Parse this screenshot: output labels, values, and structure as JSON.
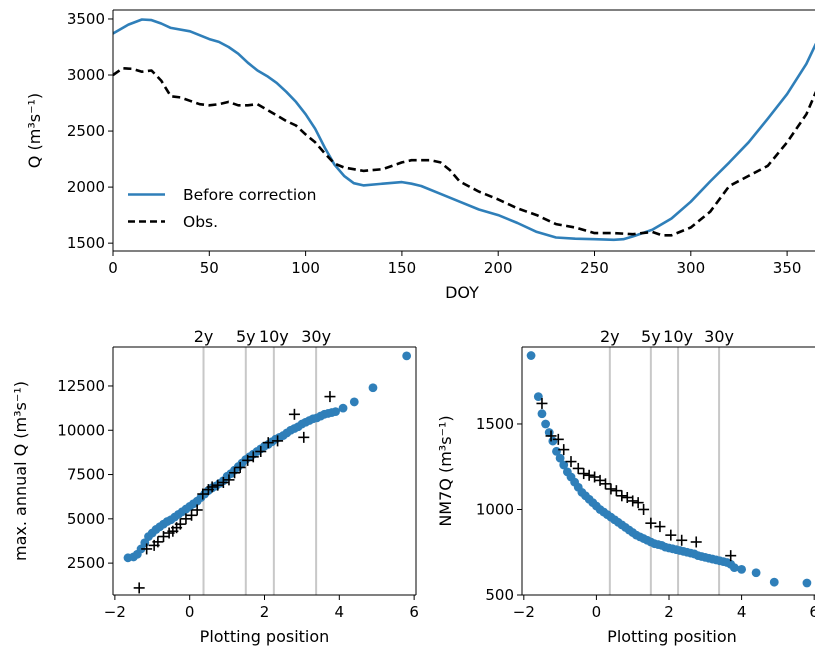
{
  "chart_data": [
    {
      "type": "line",
      "xlabel": "DOY",
      "ylabel": "Q (m³s⁻¹)",
      "xlim": [
        0,
        365
      ],
      "ylim": [
        1430,
        3580
      ],
      "x_ticks": [
        0,
        50,
        100,
        150,
        200,
        250,
        300,
        350
      ],
      "x_tick_labels": [
        "0",
        "50",
        "100",
        "150",
        "200",
        "250",
        "300",
        "350"
      ],
      "y_ticks": [
        1500,
        2000,
        2500,
        3000,
        3500
      ],
      "y_tick_labels": [
        "1500",
        "2000",
        "2500",
        "3000",
        "3500"
      ],
      "legend_position": "lower-left",
      "series": [
        {
          "name": "Before correction",
          "style": "solid",
          "color": "#2f7fb9",
          "x": [
            0,
            8,
            15,
            20,
            25,
            30,
            40,
            50,
            55,
            60,
            65,
            70,
            75,
            80,
            85,
            90,
            95,
            100,
            105,
            110,
            115,
            120,
            125,
            130,
            140,
            150,
            155,
            160,
            170,
            180,
            190,
            200,
            210,
            220,
            230,
            240,
            250,
            260,
            265,
            270,
            280,
            290,
            300,
            310,
            320,
            330,
            340,
            350,
            360,
            365
          ],
          "y": [
            3370,
            3450,
            3495,
            3490,
            3460,
            3420,
            3390,
            3320,
            3295,
            3250,
            3190,
            3110,
            3040,
            2990,
            2930,
            2850,
            2760,
            2650,
            2520,
            2350,
            2200,
            2100,
            2035,
            2015,
            2030,
            2045,
            2030,
            2010,
            1940,
            1870,
            1800,
            1750,
            1680,
            1600,
            1550,
            1540,
            1535,
            1530,
            1535,
            1560,
            1620,
            1720,
            1870,
            2050,
            2220,
            2400,
            2610,
            2830,
            3100,
            3280
          ]
        },
        {
          "name": "Obs.",
          "style": "dashed",
          "color": "#000000",
          "x": [
            0,
            5,
            10,
            15,
            20,
            25,
            30,
            35,
            40,
            45,
            50,
            55,
            60,
            65,
            70,
            75,
            80,
            85,
            90,
            95,
            100,
            105,
            110,
            115,
            120,
            125,
            130,
            140,
            150,
            155,
            160,
            165,
            170,
            175,
            180,
            190,
            200,
            210,
            220,
            230,
            240,
            250,
            260,
            270,
            280,
            285,
            290,
            300,
            310,
            320,
            330,
            340,
            350,
            360,
            365
          ],
          "y": [
            3000,
            3060,
            3055,
            3030,
            3040,
            2950,
            2810,
            2800,
            2770,
            2740,
            2730,
            2740,
            2760,
            2730,
            2730,
            2740,
            2690,
            2640,
            2590,
            2550,
            2470,
            2400,
            2300,
            2210,
            2175,
            2160,
            2145,
            2160,
            2220,
            2240,
            2240,
            2240,
            2220,
            2150,
            2050,
            1960,
            1890,
            1810,
            1750,
            1670,
            1640,
            1590,
            1590,
            1580,
            1600,
            1570,
            1570,
            1640,
            1780,
            2010,
            2100,
            2190,
            2400,
            2650,
            2850
          ]
        }
      ]
    },
    {
      "type": "scatter",
      "xlabel": "Plotting position",
      "ylabel": "max. annual Q (m³s⁻¹)",
      "xlim": [
        -2.05,
        6.05
      ],
      "ylim": [
        700,
        14700
      ],
      "x_ticks": [
        -2,
        0,
        2,
        4,
        6
      ],
      "x_tick_labels": [
        "−2",
        "0",
        "2",
        "4",
        "6"
      ],
      "y_ticks": [
        2500,
        5000,
        7500,
        10000,
        12500
      ],
      "y_tick_labels": [
        "2500",
        "5000",
        "7500",
        "10000",
        "12500"
      ],
      "return_periods": [
        {
          "label": "2y",
          "x": 0.37
        },
        {
          "label": "5y",
          "x": 1.5
        },
        {
          "label": "10y",
          "x": 2.25
        },
        {
          "label": "30y",
          "x": 3.38
        }
      ],
      "series": [
        {
          "name": "",
          "marker": "circle",
          "color": "#2f7fb9",
          "x": [
            -1.65,
            -1.5,
            -1.4,
            -1.3,
            -1.2,
            -1.1,
            -1.0,
            -0.9,
            -0.8,
            -0.7,
            -0.6,
            -0.5,
            -0.4,
            -0.3,
            -0.2,
            -0.1,
            0.0,
            0.1,
            0.2,
            0.3,
            0.4,
            0.5,
            0.6,
            0.7,
            0.8,
            0.9,
            1.0,
            1.1,
            1.2,
            1.3,
            1.4,
            1.5,
            1.6,
            1.7,
            1.8,
            1.9,
            2.0,
            2.1,
            2.2,
            2.3,
            2.4,
            2.5,
            2.6,
            2.7,
            2.8,
            2.9,
            3.0,
            3.1,
            3.2,
            3.3,
            3.4,
            3.5,
            3.6,
            3.7,
            3.8,
            3.9,
            4.1,
            4.4,
            4.9,
            5.8
          ],
          "y": [
            2800,
            2850,
            3000,
            3300,
            3650,
            4000,
            4200,
            4400,
            4550,
            4700,
            4850,
            4950,
            5100,
            5250,
            5400,
            5550,
            5700,
            5850,
            6000,
            6200,
            6400,
            6600,
            6750,
            6850,
            7000,
            7150,
            7400,
            7550,
            7750,
            7950,
            8150,
            8350,
            8500,
            8650,
            8800,
            8950,
            9100,
            9200,
            9350,
            9500,
            9600,
            9700,
            9850,
            10000,
            10100,
            10200,
            10350,
            10450,
            10550,
            10650,
            10700,
            10800,
            10900,
            10950,
            11000,
            11050,
            11250,
            11600,
            12400,
            14200
          ]
        },
        {
          "name": "",
          "marker": "plus",
          "color": "#000000",
          "x": [
            -1.35,
            -1.15,
            -0.95,
            -0.85,
            -0.7,
            -0.55,
            -0.45,
            -0.35,
            -0.25,
            -0.1,
            0.05,
            0.2,
            0.35,
            0.5,
            0.6,
            0.75,
            0.9,
            1.05,
            1.2,
            1.35,
            1.55,
            1.7,
            1.9,
            2.1,
            2.35,
            2.8,
            3.05,
            3.75
          ],
          "y": [
            1100,
            3300,
            3500,
            3700,
            4000,
            4200,
            4300,
            4500,
            4700,
            5000,
            5200,
            5500,
            6400,
            6650,
            6800,
            6900,
            7050,
            7200,
            7600,
            7900,
            8300,
            8500,
            8800,
            9300,
            9400,
            10900,
            9600,
            11900
          ]
        }
      ]
    },
    {
      "type": "scatter",
      "xlabel": "Plotting position",
      "ylabel": "NM7Q (m³s⁻¹)",
      "xlim": [
        -2.05,
        6.05
      ],
      "ylim": [
        500,
        1950
      ],
      "x_ticks": [
        -2,
        0,
        2,
        4,
        6
      ],
      "x_tick_labels": [
        "−2",
        "0",
        "2",
        "4",
        "6"
      ],
      "y_ticks": [
        500,
        1000,
        1500
      ],
      "y_tick_labels": [
        "500",
        "1000",
        "1500"
      ],
      "return_periods": [
        {
          "label": "2y",
          "x": 0.37
        },
        {
          "label": "5y",
          "x": 1.5
        },
        {
          "label": "10y",
          "x": 2.25
        },
        {
          "label": "30y",
          "x": 3.38
        }
      ],
      "series": [
        {
          "name": "",
          "marker": "circle",
          "color": "#2f7fb9",
          "x": [
            -1.8,
            -1.6,
            -1.5,
            -1.4,
            -1.3,
            -1.2,
            -1.1,
            -1.0,
            -0.9,
            -0.8,
            -0.7,
            -0.6,
            -0.5,
            -0.4,
            -0.3,
            -0.2,
            -0.1,
            0.0,
            0.1,
            0.2,
            0.3,
            0.4,
            0.5,
            0.6,
            0.7,
            0.8,
            0.9,
            1.0,
            1.1,
            1.2,
            1.3,
            1.4,
            1.5,
            1.6,
            1.7,
            1.8,
            1.9,
            2.0,
            2.1,
            2.2,
            2.3,
            2.4,
            2.5,
            2.6,
            2.7,
            2.8,
            2.9,
            3.0,
            3.1,
            3.2,
            3.3,
            3.4,
            3.5,
            3.6,
            3.7,
            3.8,
            4.0,
            4.4,
            4.9,
            5.8
          ],
          "y": [
            1900,
            1660,
            1560,
            1500,
            1450,
            1400,
            1340,
            1300,
            1260,
            1220,
            1190,
            1160,
            1130,
            1100,
            1080,
            1060,
            1040,
            1020,
            1000,
            985,
            970,
            955,
            940,
            925,
            910,
            895,
            880,
            865,
            850,
            840,
            830,
            820,
            810,
            800,
            795,
            790,
            780,
            775,
            770,
            765,
            760,
            755,
            750,
            745,
            740,
            730,
            725,
            720,
            715,
            710,
            705,
            700,
            695,
            690,
            680,
            660,
            650,
            630,
            575,
            570
          ]
        },
        {
          "name": "",
          "marker": "plus",
          "color": "#000000",
          "x": [
            -1.5,
            -1.25,
            -1.05,
            -0.9,
            -0.7,
            -0.5,
            -0.35,
            -0.2,
            -0.05,
            0.1,
            0.25,
            0.4,
            0.55,
            0.7,
            0.85,
            1.0,
            1.15,
            1.3,
            1.5,
            1.75,
            2.05,
            2.35,
            2.75,
            3.7
          ],
          "y": [
            1620,
            1430,
            1410,
            1350,
            1280,
            1240,
            1210,
            1200,
            1190,
            1170,
            1150,
            1120,
            1110,
            1080,
            1070,
            1050,
            1040,
            1000,
            920,
            900,
            850,
            820,
            810,
            730
          ]
        }
      ]
    }
  ]
}
